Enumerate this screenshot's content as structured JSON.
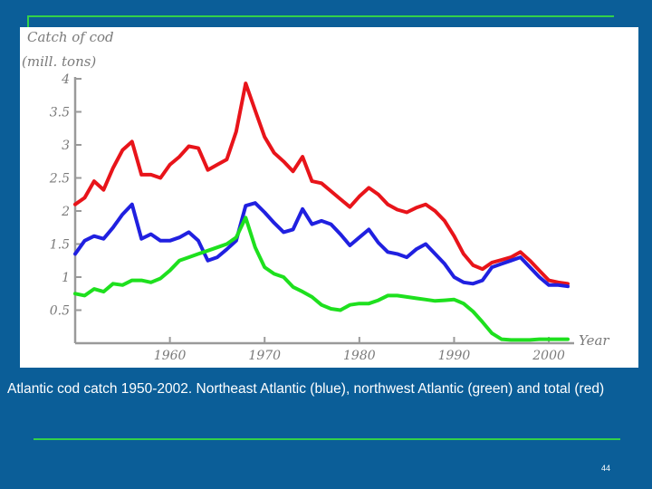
{
  "caption": "Atlantic cod catch 1950-2002. Northeast Atlantic (blue), northwest Atlantic (green) and total (red)",
  "page_number": "44",
  "colors": {
    "background": "#0b5e98",
    "rule": "#33d14a",
    "panel": "#ffffff"
  },
  "chart_data": {
    "type": "line",
    "ylabel_line1": "Catch of cod",
    "ylabel_line2": "(mill. tons)",
    "xlabel": "Year",
    "ylim": [
      0,
      4
    ],
    "xlim": [
      1950,
      2002
    ],
    "yticks": [
      "0.5",
      "1",
      "1.5",
      "2",
      "2.5",
      "3",
      "3.5",
      "4"
    ],
    "ytick_values": [
      0.5,
      1,
      1.5,
      2,
      2.5,
      3,
      3.5,
      4
    ],
    "xticks": [
      "1960",
      "1970",
      "1980",
      "1990",
      "2000"
    ],
    "xtick_values": [
      1960,
      1970,
      1980,
      1990,
      2000
    ],
    "grid": false,
    "series": [
      {
        "color": "#e8141a",
        "points": [
          [
            1950,
            2.1
          ],
          [
            1951,
            2.2
          ],
          [
            1952,
            2.45
          ],
          [
            1953,
            2.32
          ],
          [
            1954,
            2.65
          ],
          [
            1955,
            2.92
          ],
          [
            1956,
            3.05
          ],
          [
            1957,
            2.55
          ],
          [
            1958,
            2.55
          ],
          [
            1959,
            2.5
          ],
          [
            1960,
            2.7
          ],
          [
            1961,
            2.82
          ],
          [
            1962,
            2.98
          ],
          [
            1963,
            2.95
          ],
          [
            1964,
            2.62
          ],
          [
            1965,
            2.7
          ],
          [
            1966,
            2.78
          ],
          [
            1967,
            3.2
          ],
          [
            1968,
            3.93
          ],
          [
            1969,
            3.52
          ],
          [
            1970,
            3.12
          ],
          [
            1971,
            2.88
          ],
          [
            1972,
            2.75
          ],
          [
            1973,
            2.6
          ],
          [
            1974,
            2.82
          ],
          [
            1975,
            2.45
          ],
          [
            1976,
            2.42
          ],
          [
            1977,
            2.3
          ],
          [
            1978,
            2.18
          ],
          [
            1979,
            2.06
          ],
          [
            1980,
            2.22
          ],
          [
            1981,
            2.35
          ],
          [
            1982,
            2.25
          ],
          [
            1983,
            2.1
          ],
          [
            1984,
            2.02
          ],
          [
            1985,
            1.98
          ],
          [
            1986,
            2.05
          ],
          [
            1987,
            2.1
          ],
          [
            1988,
            2.0
          ],
          [
            1989,
            1.85
          ],
          [
            1990,
            1.62
          ],
          [
            1991,
            1.35
          ],
          [
            1992,
            1.18
          ],
          [
            1993,
            1.12
          ],
          [
            1994,
            1.22
          ],
          [
            1995,
            1.26
          ],
          [
            1996,
            1.3
          ],
          [
            1997,
            1.38
          ],
          [
            1998,
            1.25
          ],
          [
            1999,
            1.1
          ],
          [
            2000,
            0.95
          ],
          [
            2001,
            0.92
          ],
          [
            2002,
            0.9
          ]
        ]
      },
      {
        "color": "#2020e0",
        "points": [
          [
            1950,
            1.35
          ],
          [
            1951,
            1.55
          ],
          [
            1952,
            1.62
          ],
          [
            1953,
            1.58
          ],
          [
            1954,
            1.75
          ],
          [
            1955,
            1.95
          ],
          [
            1956,
            2.1
          ],
          [
            1957,
            1.58
          ],
          [
            1958,
            1.65
          ],
          [
            1959,
            1.55
          ],
          [
            1960,
            1.55
          ],
          [
            1961,
            1.6
          ],
          [
            1962,
            1.68
          ],
          [
            1963,
            1.55
          ],
          [
            1964,
            1.25
          ],
          [
            1965,
            1.3
          ],
          [
            1966,
            1.42
          ],
          [
            1967,
            1.55
          ],
          [
            1968,
            2.08
          ],
          [
            1969,
            2.12
          ],
          [
            1970,
            1.98
          ],
          [
            1971,
            1.82
          ],
          [
            1972,
            1.68
          ],
          [
            1973,
            1.72
          ],
          [
            1974,
            2.03
          ],
          [
            1975,
            1.8
          ],
          [
            1976,
            1.85
          ],
          [
            1977,
            1.8
          ],
          [
            1978,
            1.65
          ],
          [
            1979,
            1.48
          ],
          [
            1980,
            1.6
          ],
          [
            1981,
            1.72
          ],
          [
            1982,
            1.52
          ],
          [
            1983,
            1.38
          ],
          [
            1984,
            1.35
          ],
          [
            1985,
            1.3
          ],
          [
            1986,
            1.42
          ],
          [
            1987,
            1.5
          ],
          [
            1988,
            1.35
          ],
          [
            1989,
            1.2
          ],
          [
            1990,
            1.0
          ],
          [
            1991,
            0.92
          ],
          [
            1992,
            0.9
          ],
          [
            1993,
            0.95
          ],
          [
            1994,
            1.15
          ],
          [
            1995,
            1.2
          ],
          [
            1996,
            1.25
          ],
          [
            1997,
            1.3
          ],
          [
            1998,
            1.15
          ],
          [
            1999,
            1.0
          ],
          [
            2000,
            0.88
          ],
          [
            2001,
            0.88
          ],
          [
            2002,
            0.86
          ]
        ]
      },
      {
        "color": "#1ee01e",
        "points": [
          [
            1950,
            0.75
          ],
          [
            1951,
            0.72
          ],
          [
            1952,
            0.82
          ],
          [
            1953,
            0.78
          ],
          [
            1954,
            0.9
          ],
          [
            1955,
            0.88
          ],
          [
            1956,
            0.95
          ],
          [
            1957,
            0.95
          ],
          [
            1958,
            0.92
          ],
          [
            1959,
            0.98
          ],
          [
            1960,
            1.1
          ],
          [
            1961,
            1.25
          ],
          [
            1962,
            1.3
          ],
          [
            1963,
            1.35
          ],
          [
            1964,
            1.4
          ],
          [
            1965,
            1.45
          ],
          [
            1966,
            1.5
          ],
          [
            1967,
            1.6
          ],
          [
            1968,
            1.9
          ],
          [
            1969,
            1.45
          ],
          [
            1970,
            1.15
          ],
          [
            1971,
            1.05
          ],
          [
            1972,
            1.0
          ],
          [
            1973,
            0.85
          ],
          [
            1974,
            0.78
          ],
          [
            1975,
            0.7
          ],
          [
            1976,
            0.58
          ],
          [
            1977,
            0.52
          ],
          [
            1978,
            0.5
          ],
          [
            1979,
            0.58
          ],
          [
            1980,
            0.6
          ],
          [
            1981,
            0.6
          ],
          [
            1982,
            0.65
          ],
          [
            1983,
            0.72
          ],
          [
            1984,
            0.72
          ],
          [
            1985,
            0.7
          ],
          [
            1986,
            0.68
          ],
          [
            1987,
            0.66
          ],
          [
            1988,
            0.64
          ],
          [
            1989,
            0.65
          ],
          [
            1990,
            0.66
          ],
          [
            1991,
            0.6
          ],
          [
            1992,
            0.48
          ],
          [
            1993,
            0.32
          ],
          [
            1994,
            0.15
          ],
          [
            1995,
            0.06
          ],
          [
            1996,
            0.05
          ],
          [
            1997,
            0.05
          ],
          [
            1998,
            0.05
          ],
          [
            1999,
            0.06
          ],
          [
            2000,
            0.06
          ],
          [
            2001,
            0.06
          ],
          [
            2002,
            0.06
          ]
        ]
      }
    ]
  }
}
